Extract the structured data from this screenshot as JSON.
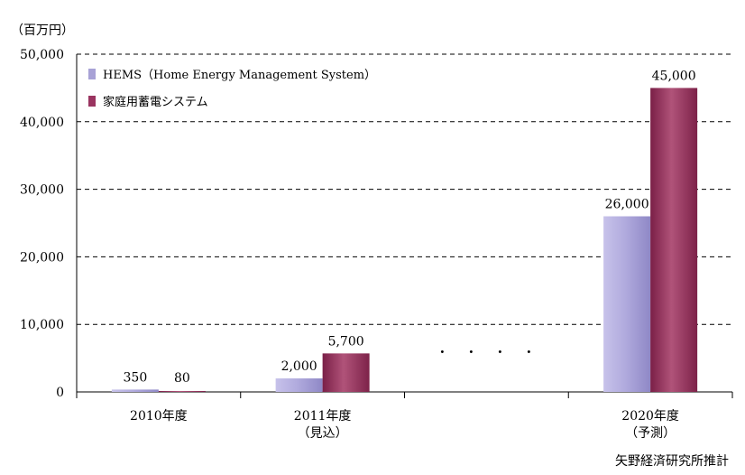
{
  "chart_data": {
    "type": "bar",
    "unit_label": "（百万円）",
    "categories": [
      "2010年度",
      "2011年度\n（見込）",
      "",
      "2020年度\n（予測）"
    ],
    "series": [
      {
        "name": "HEMS（Home Energy Management System）",
        "color": "#a8a2d6",
        "values": [
          350,
          2000,
          null,
          26000
        ],
        "labels": [
          "350",
          "2,000",
          "",
          "26,000"
        ]
      },
      {
        "name": "家庭用蓄電システム",
        "color": "#9a3460",
        "values": [
          80,
          5700,
          null,
          45000
        ],
        "labels": [
          "80",
          "5,700",
          "",
          "45,000"
        ]
      }
    ],
    "ylim": [
      0,
      50000
    ],
    "yticks": [
      0,
      10000,
      20000,
      30000,
      40000,
      50000
    ],
    "ytick_labels": [
      "0",
      "10,000",
      "20,000",
      "30,000",
      "40,000",
      "50,000"
    ],
    "grid": "dashed horizontal",
    "legend": "top-left",
    "gap_marker": "・　・　・　・"
  },
  "source": "矢野経済研究所推計"
}
